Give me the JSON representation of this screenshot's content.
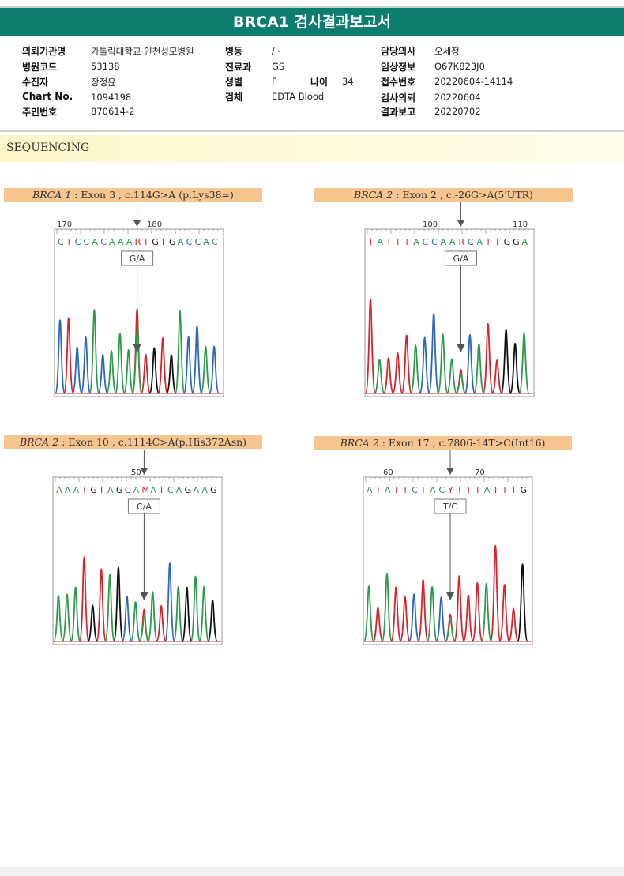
{
  "title": "BRCA1 검사결과보고서",
  "info": {
    "col1": [
      {
        "label": "의뢰기관명",
        "value": "가톨릭대학교 인천성모병원"
      },
      {
        "label": "병원코드",
        "value": "53138"
      },
      {
        "label": "수진자",
        "value": "장정윤"
      },
      {
        "label": "Chart No.",
        "value": "1094198"
      },
      {
        "label": "주민번호",
        "value": "870614-2"
      }
    ],
    "col2": [
      {
        "label": "병동",
        "value": "/ -"
      },
      {
        "label": "진료과",
        "value": "GS"
      },
      {
        "label": "성별",
        "value": "F"
      },
      {
        "label": "검체",
        "value": "EDTA Blood"
      }
    ],
    "age": {
      "label": "나이",
      "value": "34"
    },
    "col3": [
      {
        "label": "담당의사",
        "value": "오세정"
      },
      {
        "label": "임상정보",
        "value": "O67K823J0"
      },
      {
        "label": "접수번호",
        "value": "20220604-14114"
      },
      {
        "label": "검사의뢰",
        "value": "20220604"
      },
      {
        "label": "결과보고",
        "value": "20220702"
      }
    ]
  },
  "section_title": "SEQUENCING",
  "panels": [
    {
      "gene": "BRCA 1",
      "detail": ": Exon 3 , c.114G>A (p.Lys38=)",
      "call": "G/A",
      "positions": [
        {
          "label": "170"
        },
        {
          "label": "180"
        }
      ],
      "sequence": "CTCCACAAARTGTGACCAC",
      "highlight_index": 9
    },
    {
      "gene": "BRCA 2",
      "detail": ": Exon 2 , c.-26G>A(5'UTR)",
      "call": "G/A",
      "positions": [
        {
          "label": "100"
        },
        {
          "label": "110"
        }
      ],
      "sequence": "TATTTACCAARCATTGGA",
      "highlight_index": 10
    },
    {
      "gene": "BRCA 2",
      "detail": ": Exon 10 , c.1114C>A(p.His372Asn)",
      "call": "C/A",
      "positions": [
        {
          "label": "50"
        }
      ],
      "sequence": "AAATGTAGCAMATCAGAAG",
      "highlight_index": 10
    },
    {
      "gene": "BRCA 2",
      "detail": ": Exon 17 , c.7806-14T>C(Int16)",
      "call": "T/C",
      "positions": [
        {
          "label": "60"
        },
        {
          "label": "70"
        }
      ],
      "sequence": "ATATTCTACYTTTATTTG",
      "highlight_index": 9
    }
  ],
  "base_colors": {
    "A": "#2a9b4a",
    "C": "#2b68b8",
    "G": "#111111",
    "T": "#d8232a",
    "mixed": "#d8232a"
  }
}
